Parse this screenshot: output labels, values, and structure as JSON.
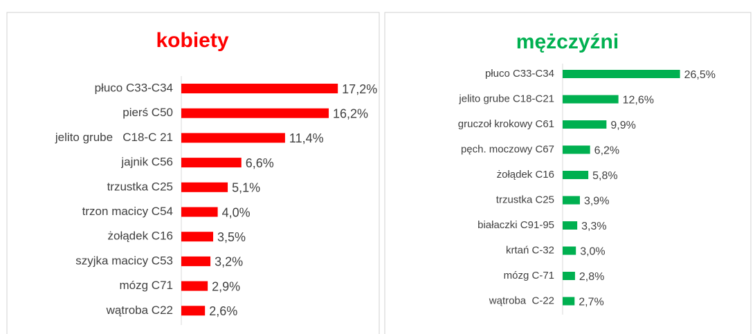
{
  "chart_data": [
    {
      "type": "bar",
      "orientation": "horizontal",
      "title": "kobiety",
      "color": "#ff0000",
      "categories": [
        "płuco C33-C34",
        "pierś C50",
        "jelito grube   C18-C 21",
        "jajnik C56",
        "trzustka C25",
        "trzon macicy C54",
        "żołądek C16",
        "szyjka macicy C53",
        "mózg C71",
        "wątroba C22"
      ],
      "values": [
        17.2,
        16.2,
        11.4,
        6.6,
        5.1,
        4.0,
        3.5,
        3.2,
        2.9,
        2.6
      ],
      "value_labels": [
        "17,2%",
        "16,2%",
        "11,4%",
        "6,6%",
        "5,1%",
        "4,0%",
        "3,5%",
        "3,2%",
        "2,9%",
        "2,6%"
      ]
    },
    {
      "type": "bar",
      "orientation": "horizontal",
      "title": "mężczyźni",
      "color": "#00b050",
      "categories": [
        "płuco C33-C34",
        "jelito grube C18-C21",
        "gruczoł krokowy C61",
        "pęch. moczowy C67",
        "żołądek C16",
        "trzustka C25",
        "białaczki C91-95",
        "krtań C-32",
        "mózg C-71",
        "wątroba  C-22"
      ],
      "values": [
        26.5,
        12.6,
        9.9,
        6.2,
        5.8,
        3.9,
        3.3,
        3.0,
        2.8,
        2.7
      ],
      "value_labels": [
        "26,5%",
        "12,6%",
        "9,9%",
        "6,2%",
        "5,8%",
        "3,9%",
        "3,3%",
        "3,0%",
        "2,8%",
        "2,7%"
      ]
    }
  ]
}
